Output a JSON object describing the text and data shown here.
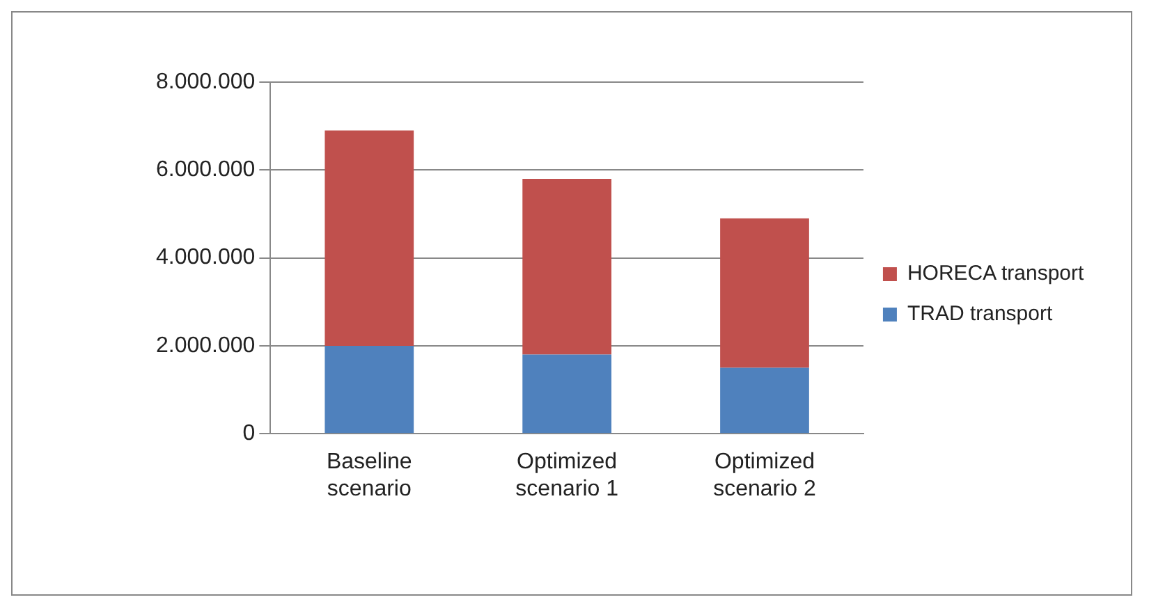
{
  "chart_data": {
    "type": "bar",
    "stacked": true,
    "categories": [
      "Baseline scenario",
      "Optimized scenario 1",
      "Optimized scenario 2"
    ],
    "series": [
      {
        "name": "TRAD transport",
        "color": "#4f81bd",
        "values": [
          2000000,
          1800000,
          1500000
        ]
      },
      {
        "name": "HORECA transport",
        "color": "#c0504d",
        "values": [
          4900000,
          4000000,
          3400000
        ]
      }
    ],
    "ylim": [
      0,
      8000000
    ],
    "yticks": [
      {
        "value": 0,
        "label": "0"
      },
      {
        "value": 2000000,
        "label": "2.000.000"
      },
      {
        "value": 4000000,
        "label": "4.000.000"
      },
      {
        "value": 6000000,
        "label": "6.000.000"
      },
      {
        "value": 8000000,
        "label": "8.000.000"
      }
    ],
    "grid": "y",
    "legend": "right"
  }
}
